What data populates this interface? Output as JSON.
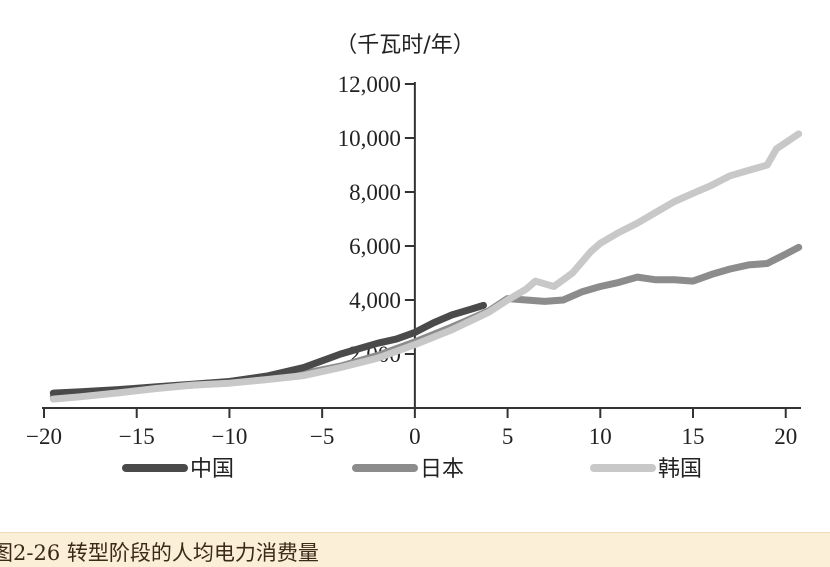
{
  "caption": "图2-26 转型阶段的人均电力消费量",
  "chart_data": {
    "type": "line",
    "title": "",
    "ylabel": "（千瓦时/年）",
    "xlabel": "",
    "xlim": [
      -20,
      21
    ],
    "ylim": [
      0,
      12000
    ],
    "x_ticks": [
      -20,
      -15,
      -10,
      -5,
      0,
      5,
      10,
      15,
      20
    ],
    "x_tick_labels": [
      "−20",
      "−15",
      "−10",
      "−5",
      "0",
      "5",
      "10",
      "15",
      "20"
    ],
    "y_ticks": [
      2000,
      4000,
      6000,
      8000,
      10000,
      12000
    ],
    "y_tick_labels": [
      "2,000",
      "4,000",
      "6,000",
      "8,000",
      "10,000",
      "12,000"
    ],
    "legend_position": "bottom",
    "series": [
      {
        "name": "中国",
        "color": "#4a4a4a",
        "points": [
          [
            -19.5,
            550
          ],
          [
            -18,
            600
          ],
          [
            -16,
            680
          ],
          [
            -14,
            780
          ],
          [
            -12,
            880
          ],
          [
            -10,
            980
          ],
          [
            -8,
            1180
          ],
          [
            -6,
            1500
          ],
          [
            -5,
            1750
          ],
          [
            -4,
            2000
          ],
          [
            -3,
            2200
          ],
          [
            -2,
            2400
          ],
          [
            -1,
            2550
          ],
          [
            0,
            2800
          ],
          [
            1,
            3150
          ],
          [
            2,
            3450
          ],
          [
            3,
            3650
          ],
          [
            3.7,
            3800
          ]
        ]
      },
      {
        "name": "日本",
        "color": "#8c8c8c",
        "points": [
          [
            -19.5,
            430
          ],
          [
            -18,
            520
          ],
          [
            -16,
            640
          ],
          [
            -14,
            760
          ],
          [
            -12,
            850
          ],
          [
            -10,
            950
          ],
          [
            -8,
            1100
          ],
          [
            -6,
            1280
          ],
          [
            -4,
            1550
          ],
          [
            -2,
            1950
          ],
          [
            0,
            2450
          ],
          [
            2,
            3000
          ],
          [
            4,
            3600
          ],
          [
            5,
            4050
          ],
          [
            6,
            4000
          ],
          [
            7,
            3950
          ],
          [
            8,
            4000
          ],
          [
            9,
            4300
          ],
          [
            10,
            4500
          ],
          [
            11,
            4650
          ],
          [
            12,
            4850
          ],
          [
            13,
            4750
          ],
          [
            14,
            4750
          ],
          [
            15,
            4700
          ],
          [
            16,
            4950
          ],
          [
            17,
            5150
          ],
          [
            18,
            5300
          ],
          [
            19,
            5350
          ],
          [
            20,
            5700
          ],
          [
            20.7,
            5950
          ]
        ]
      },
      {
        "name": "韩国",
        "color": "#c8c8c8",
        "points": [
          [
            -19.5,
            330
          ],
          [
            -18,
            420
          ],
          [
            -16,
            560
          ],
          [
            -14,
            720
          ],
          [
            -12,
            850
          ],
          [
            -10,
            920
          ],
          [
            -8,
            1050
          ],
          [
            -6,
            1200
          ],
          [
            -4,
            1500
          ],
          [
            -2,
            1850
          ],
          [
            0,
            2350
          ],
          [
            2,
            2900
          ],
          [
            4,
            3550
          ],
          [
            5,
            4000
          ],
          [
            6,
            4400
          ],
          [
            6.5,
            4700
          ],
          [
            7,
            4600
          ],
          [
            7.5,
            4500
          ],
          [
            8.5,
            5000
          ],
          [
            9.5,
            5800
          ],
          [
            10,
            6100
          ],
          [
            11,
            6500
          ],
          [
            12,
            6850
          ],
          [
            13,
            7250
          ],
          [
            14,
            7650
          ],
          [
            15,
            7950
          ],
          [
            16,
            8250
          ],
          [
            17,
            8600
          ],
          [
            18,
            8800
          ],
          [
            19,
            9000
          ],
          [
            19.5,
            9600
          ],
          [
            20.7,
            10150
          ]
        ]
      }
    ]
  }
}
